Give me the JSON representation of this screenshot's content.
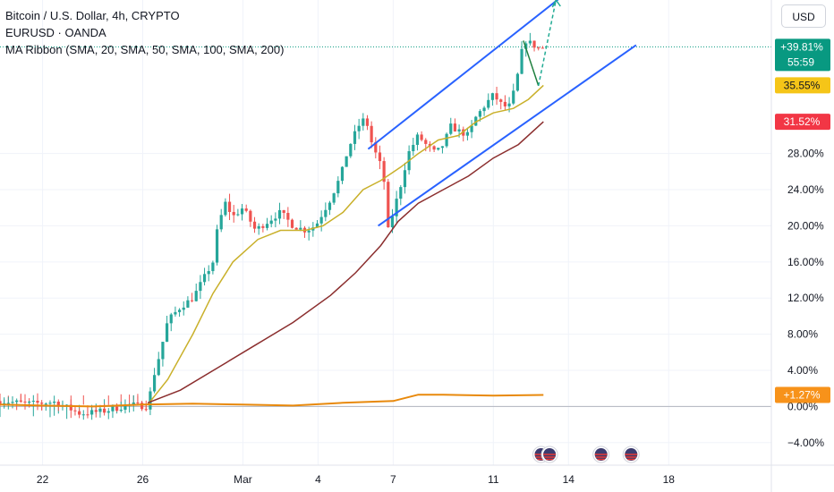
{
  "legend": {
    "symbol": "Bitcoin / U.S. Dollar, 4h, CRYPTO",
    "compare": "EURUSD · OANDA",
    "indicator": "MA Ribbon (SMA, 20, SMA, 50, SMA, 100, SMA, 200)"
  },
  "currency_button": "USD",
  "colors": {
    "up": "#26a69a",
    "down": "#ef5350",
    "channel": "#2962ff",
    "arrow": "#22ab94",
    "ma20": "#c9b02a",
    "ma50": "#8b2e2e",
    "compare": "#e8890c",
    "badge_price": "#089981",
    "badge_ma20": "#f5c518",
    "badge_ma50": "#f23645",
    "badge_compare": "#f7921a"
  },
  "chart_data": {
    "type": "candlestick",
    "y_unit": "%",
    "y_ticks": [
      "−4.00%",
      "0.00%",
      "4.00%",
      "8.00%",
      "12.00%",
      "16.00%",
      "20.00%",
      "24.00%",
      "28.00%"
    ],
    "y_tick_values": [
      -4,
      0,
      4,
      8,
      12,
      16,
      20,
      24,
      28
    ],
    "ylim": [
      -6.5,
      45
    ],
    "x_ticks": [
      "22",
      "26",
      "Mar",
      "4",
      "7",
      "11",
      "14",
      "18"
    ],
    "x_tick_days": [
      22,
      26,
      30,
      33,
      36,
      40,
      43,
      47
    ],
    "xlim": [
      20.3,
      51.1
    ],
    "price_badge": {
      "value": 39.81,
      "label": "+39.81%",
      "countdown": "55:59"
    },
    "ma_badges": [
      {
        "name": "SMA 20",
        "value": 35.55,
        "label": "35.55%"
      },
      {
        "name": "SMA 50",
        "value": 31.52,
        "label": "31.52%"
      }
    ],
    "compare_badge": {
      "name": "EURUSD",
      "value": 1.27,
      "label": "+1.27%"
    },
    "price_path": [
      [
        20.3,
        0.6
      ],
      [
        21.5,
        0.3
      ],
      [
        22.5,
        0.5
      ],
      [
        23.5,
        -0.8
      ],
      [
        24.5,
        -0.5
      ],
      [
        25.5,
        0.2
      ],
      [
        26.2,
        0.0
      ],
      [
        26.4,
        3.0
      ],
      [
        26.7,
        6.0
      ],
      [
        27.0,
        9.5
      ],
      [
        27.5,
        11.0
      ],
      [
        28.0,
        12.0
      ],
      [
        28.4,
        14.0
      ],
      [
        28.8,
        16.0
      ],
      [
        29.0,
        20.0
      ],
      [
        29.3,
        22.5
      ],
      [
        29.6,
        21.0
      ],
      [
        30.0,
        22.0
      ],
      [
        30.5,
        19.5
      ],
      [
        31.0,
        20.5
      ],
      [
        31.5,
        21.5
      ],
      [
        32.0,
        20.0
      ],
      [
        32.5,
        19.5
      ],
      [
        32.9,
        20.0
      ],
      [
        33.2,
        21.5
      ],
      [
        33.5,
        23.0
      ],
      [
        33.9,
        25.5
      ],
      [
        34.2,
        28.5
      ],
      [
        34.6,
        31.0
      ],
      [
        34.9,
        32.0
      ],
      [
        35.1,
        29.5
      ],
      [
        35.3,
        28.0
      ],
      [
        35.6,
        26.0
      ],
      [
        35.8,
        19.5
      ],
      [
        36.0,
        21.5
      ],
      [
        36.3,
        24.5
      ],
      [
        36.6,
        28.0
      ],
      [
        37.0,
        30.0
      ],
      [
        37.3,
        29.0
      ],
      [
        37.7,
        28.0
      ],
      [
        38.0,
        29.0
      ],
      [
        38.3,
        31.0
      ],
      [
        38.6,
        30.5
      ],
      [
        39.0,
        30.0
      ],
      [
        39.3,
        32.0
      ],
      [
        39.7,
        33.5
      ],
      [
        40.0,
        34.5
      ],
      [
        40.3,
        33.5
      ],
      [
        40.6,
        33.0
      ],
      [
        40.9,
        35.5
      ],
      [
        41.1,
        39.0
      ],
      [
        41.3,
        40.5
      ],
      [
        41.6,
        40.0
      ],
      [
        41.9,
        39.5
      ],
      [
        42.0,
        39.81
      ]
    ],
    "series": [
      {
        "name": "SMA 20",
        "color_key": "ma20",
        "points": [
          [
            26.2,
            0.2
          ],
          [
            27.0,
            3.0
          ],
          [
            28.0,
            8.0
          ],
          [
            28.8,
            12.5
          ],
          [
            29.6,
            16.0
          ],
          [
            30.6,
            18.5
          ],
          [
            31.5,
            19.5
          ],
          [
            32.5,
            19.5
          ],
          [
            33.2,
            20.0
          ],
          [
            34.0,
            21.5
          ],
          [
            34.8,
            24.0
          ],
          [
            35.5,
            25.0
          ],
          [
            36.3,
            26.5
          ],
          [
            37.0,
            28.0
          ],
          [
            37.8,
            29.5
          ],
          [
            38.6,
            30.0
          ],
          [
            39.3,
            31.5
          ],
          [
            40.0,
            32.5
          ],
          [
            40.8,
            33.0
          ],
          [
            41.4,
            34.0
          ],
          [
            42.0,
            35.55
          ]
        ]
      },
      {
        "name": "SMA 50",
        "color_key": "ma50",
        "points": [
          [
            26.2,
            0.4
          ],
          [
            27.5,
            1.8
          ],
          [
            29.0,
            4.3
          ],
          [
            30.5,
            6.8
          ],
          [
            32.0,
            9.3
          ],
          [
            33.5,
            12.3
          ],
          [
            34.5,
            14.8
          ],
          [
            35.5,
            17.8
          ],
          [
            36.2,
            20.5
          ],
          [
            37.0,
            22.5
          ],
          [
            38.0,
            24.0
          ],
          [
            39.0,
            25.5
          ],
          [
            40.0,
            27.5
          ],
          [
            41.0,
            29.0
          ],
          [
            42.0,
            31.52
          ]
        ]
      },
      {
        "name": "EURUSD",
        "color_key": "compare",
        "points": [
          [
            20.3,
            0.2
          ],
          [
            22.0,
            0.1
          ],
          [
            24.0,
            0.0
          ],
          [
            26.0,
            0.2
          ],
          [
            28.0,
            0.3
          ],
          [
            30.0,
            0.2
          ],
          [
            32.0,
            0.1
          ],
          [
            34.0,
            0.4
          ],
          [
            36.0,
            0.6
          ],
          [
            37.0,
            1.3
          ],
          [
            38.0,
            1.3
          ],
          [
            40.0,
            1.2
          ],
          [
            42.0,
            1.27
          ]
        ]
      }
    ],
    "channel": {
      "upper": [
        [
          35.0,
          28.5
        ],
        [
          43.7,
          47.5
        ]
      ],
      "lower": [
        [
          35.4,
          20.0
        ],
        [
          45.7,
          40.0
        ]
      ]
    },
    "projection_arrow": [
      [
        41.2,
        40.5
      ],
      [
        41.8,
        35.5
      ],
      [
        42.5,
        45.0
      ]
    ]
  }
}
